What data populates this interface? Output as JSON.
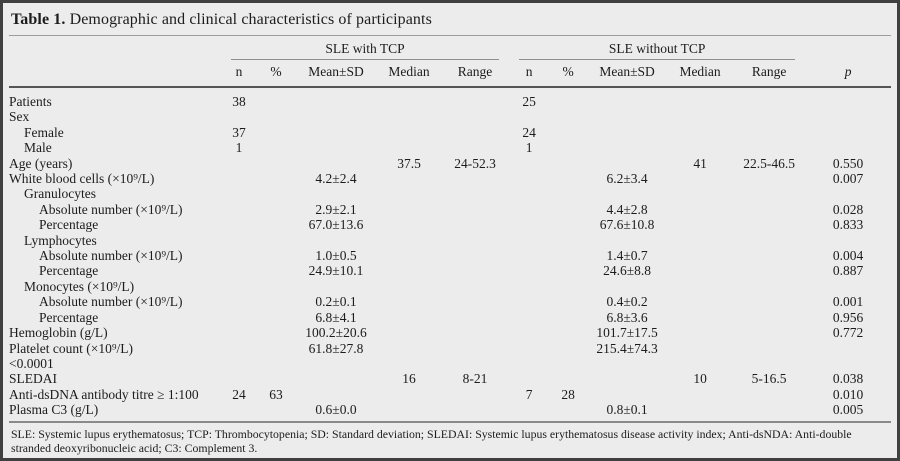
{
  "title": {
    "label": "Table 1.",
    "text": "Demographic and clinical characteristics of participants"
  },
  "table": {
    "groups": [
      {
        "label": "SLE with TCP"
      },
      {
        "label": "SLE without TCP"
      }
    ],
    "columns": [
      "n",
      "%",
      "Mean±SD",
      "Median",
      "Range"
    ],
    "p_label": "p",
    "rows": [
      {
        "label": "Patients",
        "indent": 0,
        "cells": [
          "38",
          "",
          "",
          "",
          "",
          "25",
          "",
          "",
          "",
          "",
          ""
        ]
      },
      {
        "label": "Sex",
        "indent": 0,
        "cells": [
          "",
          "",
          "",
          "",
          "",
          "",
          "",
          "",
          "",
          "",
          ""
        ]
      },
      {
        "label": "Female",
        "indent": 1,
        "cells": [
          "37",
          "",
          "",
          "",
          "",
          "24",
          "",
          "",
          "",
          "",
          ""
        ]
      },
      {
        "label": "Male",
        "indent": 1,
        "cells": [
          "1",
          "",
          "",
          "",
          "",
          "1",
          "",
          "",
          "",
          "",
          ""
        ]
      },
      {
        "label": "Age (years)",
        "indent": 0,
        "cells": [
          "",
          "",
          "",
          "37.5",
          "24-52.3",
          "",
          "",
          "",
          "41",
          "22.5-46.5",
          "0.550"
        ]
      },
      {
        "label": "White blood cells (×10⁹/L)",
        "indent": 0,
        "cells": [
          "",
          "",
          "4.2±2.4",
          "",
          "",
          "",
          "",
          "6.2±3.4",
          "",
          "",
          "0.007"
        ]
      },
      {
        "label": "Granulocytes",
        "indent": 1,
        "cells": [
          "",
          "",
          "",
          "",
          "",
          "",
          "",
          "",
          "",
          "",
          ""
        ]
      },
      {
        "label": "Absolute number (×10⁹/L)",
        "indent": 2,
        "cells": [
          "",
          "",
          "2.9±2.1",
          "",
          "",
          "",
          "",
          "4.4±2.8",
          "",
          "",
          "0.028"
        ]
      },
      {
        "label": "Percentage",
        "indent": 2,
        "cells": [
          "",
          "",
          "67.0±13.6",
          "",
          "",
          "",
          "",
          "67.6±10.8",
          "",
          "",
          "0.833"
        ]
      },
      {
        "label": "Lymphocytes",
        "indent": 1,
        "cells": [
          "",
          "",
          "",
          "",
          "",
          "",
          "",
          "",
          "",
          "",
          ""
        ]
      },
      {
        "label": "Absolute number (×10⁹/L)",
        "indent": 2,
        "cells": [
          "",
          "",
          "1.0±0.5",
          "",
          "",
          "",
          "",
          "1.4±0.7",
          "",
          "",
          "0.004"
        ]
      },
      {
        "label": "Percentage",
        "indent": 2,
        "cells": [
          "",
          "",
          "24.9±10.1",
          "",
          "",
          "",
          "",
          "24.6±8.8",
          "",
          "",
          "0.887"
        ]
      },
      {
        "label": "Monocytes (×10⁹/L)",
        "indent": 1,
        "cells": [
          "",
          "",
          "",
          "",
          "",
          "",
          "",
          "",
          "",
          "",
          ""
        ]
      },
      {
        "label": "Absolute number (×10⁹/L)",
        "indent": 2,
        "cells": [
          "",
          "",
          "0.2±0.1",
          "",
          "",
          "",
          "",
          "0.4±0.2",
          "",
          "",
          "0.001"
        ]
      },
      {
        "label": "Percentage",
        "indent": 2,
        "cells": [
          "",
          "",
          "6.8±4.1",
          "",
          "",
          "",
          "",
          "6.8±3.6",
          "",
          "",
          "0.956"
        ]
      },
      {
        "label": "Hemoglobin (g/L)",
        "indent": 0,
        "cells": [
          "",
          "",
          "100.2±20.6",
          "",
          "",
          "",
          "",
          "101.7±17.5",
          "",
          "",
          "0.772"
        ]
      },
      {
        "label": "Platelet count (×10⁹/L)",
        "indent": 0,
        "cells": [
          "",
          "",
          "61.8±27.8",
          "",
          "",
          "",
          "",
          "215.4±74.3",
          "",
          "",
          ""
        ]
      },
      {
        "label": "<0.0001",
        "indent": 0,
        "cells": [
          "",
          "",
          "",
          "",
          "",
          "",
          "",
          "",
          "",
          "",
          ""
        ]
      },
      {
        "label": "SLEDAI",
        "indent": 0,
        "cells": [
          "",
          "",
          "",
          "16",
          "8-21",
          "",
          "",
          "",
          "10",
          "5-16.5",
          "0.038"
        ]
      },
      {
        "label": "Anti-dsDNA antibody titre ≥ 1:100",
        "indent": 0,
        "cells": [
          "24",
          "63",
          "",
          "",
          "",
          "7",
          "28",
          "",
          "",
          "",
          "0.010"
        ]
      },
      {
        "label": "Plasma C3 (g/L)",
        "indent": 0,
        "cells": [
          "",
          "",
          "0.6±0.0",
          "",
          "",
          "",
          "",
          "0.8±0.1",
          "",
          "",
          "0.005"
        ]
      }
    ]
  },
  "footnote": "SLE: Systemic lupus erythematosus; TCP: Thrombocytopenia; SD: Standard deviation; SLEDAI: Systemic lupus erythematosus disease activity index; Anti-dsNDA: Anti-double stranded deoxyribonucleic acid; C3: Complement 3."
}
